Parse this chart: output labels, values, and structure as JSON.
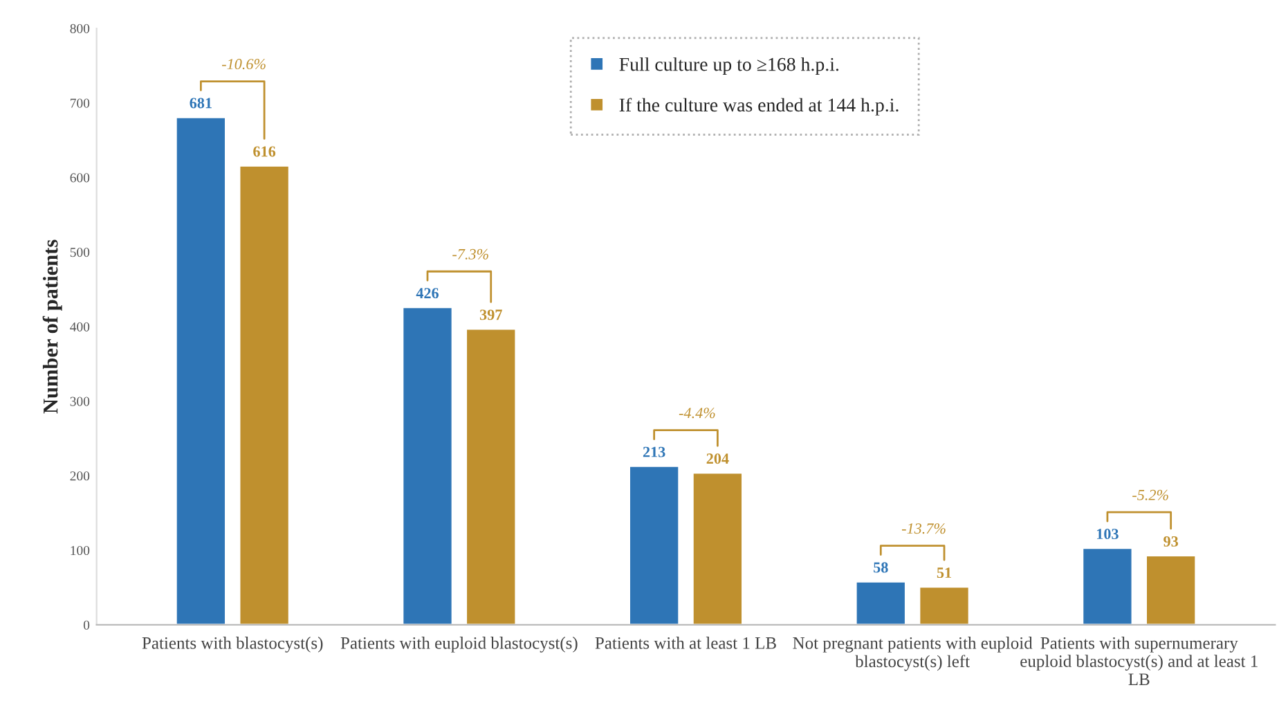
{
  "chart_data": {
    "type": "bar",
    "ylabel": "Number of patients",
    "categories": [
      "Patients with blastocyst(s)",
      "Patients with euploid blastocyst(s)",
      "Patients with at least 1 LB",
      "Not pregnant patients with euploid blastocyst(s) left",
      "Patients with supernumerary euploid blastocyst(s) and at least 1 LB"
    ],
    "series": [
      {
        "name": "Full culture up to ≥168 h.p.i.",
        "color": "#2e75b6",
        "values": [
          681,
          426,
          213,
          58,
          103
        ]
      },
      {
        "name": "If the culture was ended at 144 h.p.i.",
        "color": "#bf902e",
        "values": [
          616,
          397,
          204,
          51,
          93
        ]
      }
    ],
    "annotations": [
      "-10.6%",
      "-7.3%",
      "-4.4%",
      "-13.7%",
      "-5.2%"
    ],
    "ylim": [
      0,
      800
    ],
    "yticks": [
      0,
      100,
      200,
      300,
      400,
      500,
      600,
      700,
      800
    ],
    "data_labels": true,
    "legend": "top",
    "grid": false
  }
}
